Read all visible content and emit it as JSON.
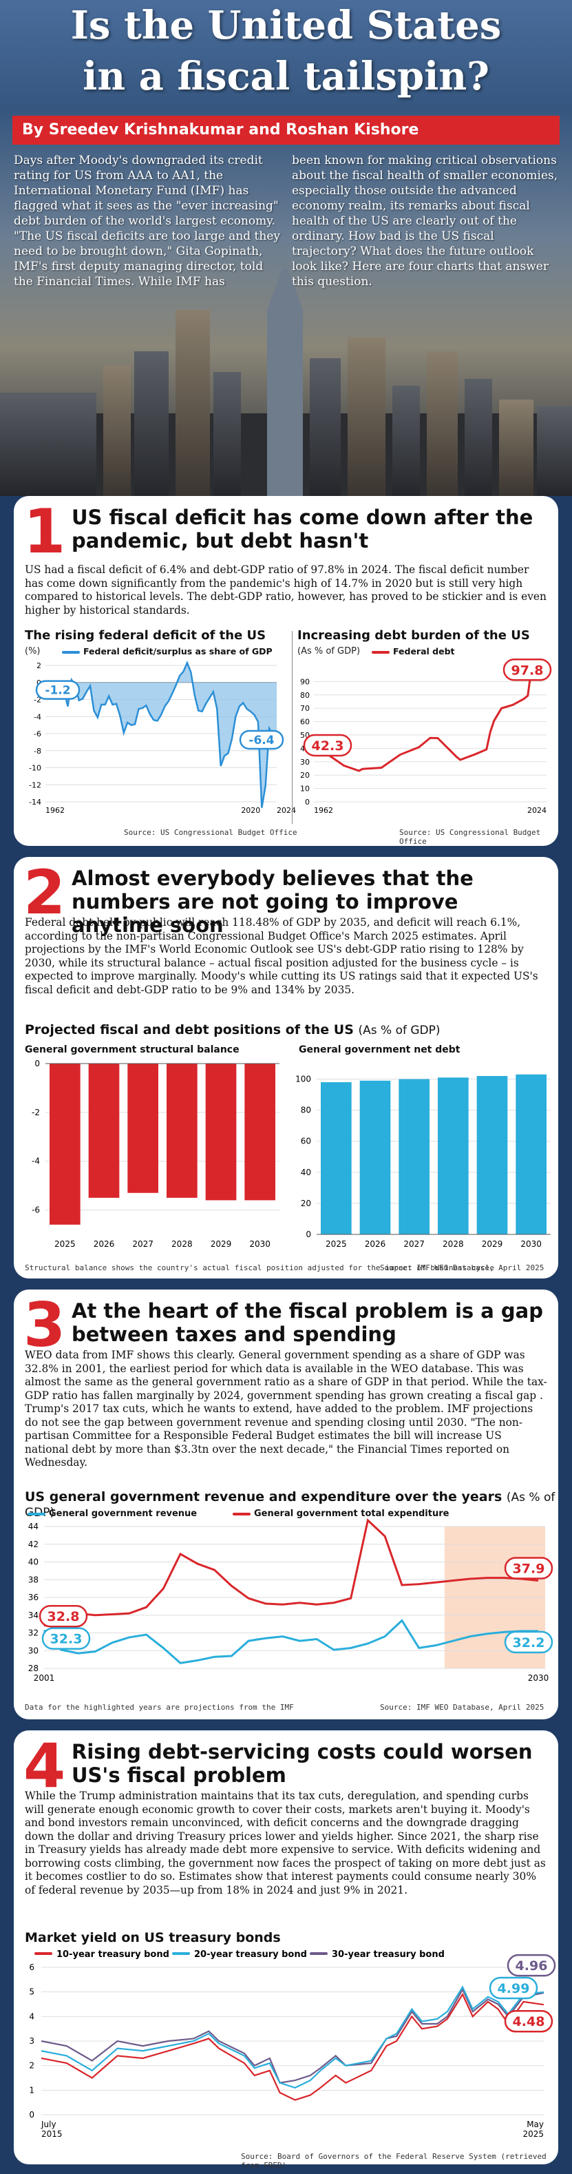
{
  "hero": {
    "title_line1": "Is the United States",
    "title_line2": "in a fiscal tailspin?",
    "byline": "By Sreedev Krishnakumar and Roshan Kishore",
    "intro_left": "Days after Moody's downgraded its credit rating for US from AAA to AA1, the International Monetary Fund (IMF) has flagged what it sees as the \"ever increasing\" debt burden of the world's largest economy. \"The US fiscal deficits are too large and they need to be brought down,\" Gita Gopinath, IMF's first deputy managing director, told the Financial Times. While IMF has",
    "intro_right": "been known for making critical observations about the fiscal health of smaller economies, especially those outside the advanced economy realm, its remarks about fiscal health of the US are clearly out of the ordinary. How bad is the US fiscal trajectory? What does the future outlook look like? Here are four charts that answer this question."
  },
  "colors": {
    "red": "#d9262b",
    "blue": "#2b8fd6",
    "teal": "#2aaedb",
    "purple": "#6d5a8a",
    "navy": "#1f3b64",
    "projection_shade": "#fbdcc8"
  },
  "s1": {
    "num": "1",
    "title": "US fiscal deficit has come down after the pandemic, but debt hasn't",
    "text": "US had a fiscal deficit of 6.4% and debt-GDP ratio of 97.8% in 2024. The fiscal deficit number has come down significantly from the pandemic's high of 14.7% in 2020 but is still very high compared to historical levels. The debt-GDP ratio, however, has proved to be stickier and is even higher by historical standards.",
    "chart1_title": "The rising federal deficit of the US",
    "chart1_unit": "(%)",
    "chart1_legend": "Federal deficit/surplus as share of GDP",
    "chart2_title": "Increasing debt burden of the US",
    "chart2_unit": "(As % of GDP)",
    "chart2_legend": "Federal debt",
    "source1": "Source: US Congressional Budget Office",
    "source2": "Source: US Congressional Budget Office"
  },
  "s2": {
    "num": "2",
    "title": "Almost everybody believes that the numbers are not going to improve anytime soon",
    "text": "Federal debt held by public will reach 118.48% of GDP by 2035, and deficit will reach 6.1%, according to the non-partisan Congressional Budget Office's March 2025 estimates. April projections by the IMF's World Economic Outlook see US's debt-GDP ratio rising to 128% by 2030, while its structural balance – actual fiscal position adjusted for the business cycle – is expected to improve marginally. Moody's while cutting its US ratings said that it expected US's fiscal deficit and debt-GDP ratio to be 9% and 134% by 2035.",
    "chart_title": "Projected fiscal and debt positions of the US",
    "chart_unit": "(As % of GDP)",
    "sub1": "General government structural balance",
    "sub2": "General government net debt",
    "note": "Structural balance shows the country's actual fiscal position adjusted for the impact of business cycle",
    "source": "Source: IMF WEO Database, April 2025"
  },
  "s3": {
    "num": "3",
    "title": "At the heart of the fiscal problem is a gap between taxes and spending",
    "text": "WEO data from IMF shows this clearly. General government spending as a share of GDP was 32.8% in 2001, the earliest period for which data is available in the WEO database. This was almost the same as the general government ratio as a share of GDP in that period. While the tax-GDP ratio has fallen marginally by 2024, government spending has grown creating a fiscal gap . Trump's 2017 tax cuts, which he wants to extend, have added to the problem. IMF projections do not see the gap between government revenue and spending closing until 2030. \"The non-partisan Committee for a Responsible Federal Budget estimates the bill will increase US national debt by more than $3.3tn over the next decade,\" the Financial Times reported on Wednesday.",
    "chart_title": "US general government revenue and expenditure over the years",
    "chart_unit": "(As % of GDP)",
    "legend_rev": "General government revenue",
    "legend_exp": "General government total expenditure",
    "note": "Data for the highlighted years are projections from the IMF",
    "source": "Source: IMF WEO Database, April 2025"
  },
  "s4": {
    "num": "4",
    "title": "Rising debt-servicing costs could worsen US's fiscal problem",
    "text": "While the Trump administration maintains that its tax cuts, deregulation, and spending curbs will generate enough economic growth to cover their costs, markets aren't buying it. Moody's and bond investors remain unconvinced, with deficit concerns and the downgrade dragging down the dollar and driving Treasury prices lower and yields higher. Since 2021, the sharp rise in Treasury yields has already made debt more expensive to service. With deficits widening and borrowing costs climbing, the government now faces the prospect of taking on more debt just as it becomes costlier to do so. Estimates show that interest payments could consume nearly 30% of federal revenue by 2035—up from 18% in 2024 and just 9% in 2021.",
    "chart_title": "Market yield on US treasury bonds",
    "source": "Source: Board of Governors of the Federal Reserve System (retrieved from FRED)"
  },
  "chart_data": [
    {
      "type": "area",
      "title": "The rising federal deficit of the US",
      "ylabel": "(%)",
      "x_ticks": [
        "1962",
        "2020",
        "2024"
      ],
      "y_ticks": [
        2,
        0,
        -2,
        -4,
        -6,
        -8,
        -10,
        -12,
        -14
      ],
      "ylim": [
        -14,
        2
      ],
      "xlim": [
        1962,
        2024
      ],
      "series": [
        {
          "name": "Federal deficit/surplus as share of GDP",
          "x": [
            1962,
            1963,
            1964,
            1965,
            1966,
            1967,
            1968,
            1969,
            1970,
            1971,
            1972,
            1973,
            1974,
            1975,
            1976,
            1977,
            1978,
            1979,
            1980,
            1981,
            1982,
            1983,
            1984,
            1985,
            1986,
            1987,
            1988,
            1989,
            1990,
            1991,
            1992,
            1993,
            1994,
            1995,
            1996,
            1997,
            1998,
            1999,
            2000,
            2001,
            2002,
            2003,
            2004,
            2005,
            2006,
            2007,
            2008,
            2009,
            2010,
            2011,
            2012,
            2013,
            2014,
            2015,
            2016,
            2017,
            2018,
            2019,
            2020,
            2021,
            2022,
            2023,
            2024
          ],
          "values": [
            -1.2,
            -0.8,
            -0.9,
            -0.2,
            -0.5,
            -1.0,
            -2.8,
            0.3,
            -0.3,
            -2.1,
            -1.9,
            -1.1,
            -0.4,
            -3.3,
            -4.1,
            -2.6,
            -2.6,
            -1.6,
            -2.6,
            -2.5,
            -3.9,
            -5.9,
            -4.7,
            -5.0,
            -4.9,
            -3.1,
            -3.0,
            -2.7,
            -3.7,
            -4.4,
            -4.5,
            -3.8,
            -2.8,
            -2.2,
            -1.3,
            -0.3,
            0.8,
            1.3,
            2.3,
            1.2,
            -1.5,
            -3.3,
            -3.4,
            -2.5,
            -1.8,
            -1.1,
            -3.1,
            -9.8,
            -8.6,
            -8.3,
            -6.6,
            -4.0,
            -2.8,
            -2.4,
            -3.1,
            -3.4,
            -3.8,
            -4.6,
            -14.7,
            -12.1,
            -5.4,
            -6.2,
            -6.4
          ]
        }
      ],
      "labels": [
        {
          "x": 1962,
          "text": "-1.2"
        },
        {
          "x": 2024,
          "text": "-6.4"
        }
      ]
    },
    {
      "type": "line",
      "title": "Increasing debt burden of the US",
      "ylabel": "(As % of GDP)",
      "x_ticks": [
        "1962",
        "2024"
      ],
      "y_ticks": [
        90,
        80,
        70,
        60,
        50,
        40,
        30,
        20,
        10,
        0
      ],
      "ylim": [
        0,
        100
      ],
      "xlim": [
        1962,
        2024
      ],
      "series": [
        {
          "name": "Federal debt",
          "x": [
            1962,
            1965,
            1970,
            1974,
            1975,
            1980,
            1985,
            1990,
            1993,
            1995,
            2000,
            2001,
            2005,
            2008,
            2009,
            2010,
            2012,
            2015,
            2018,
            2019,
            2020,
            2021,
            2022,
            2023,
            2024
          ],
          "values": [
            42.3,
            36.8,
            27.1,
            23.2,
            24.6,
            25.5,
            35.3,
            40.9,
            47.8,
            47.7,
            33.7,
            31.4,
            35.6,
            39.2,
            52.2,
            60.6,
            70.0,
            72.5,
            77.1,
            79.4,
            99.8,
            96.3,
            96.2,
            97.3,
            97.8
          ]
        }
      ],
      "labels": [
        {
          "x": 1962,
          "text": "42.3"
        },
        {
          "x": 2024,
          "text": "97.8"
        }
      ]
    },
    {
      "type": "bar",
      "title": "General government structural balance",
      "categories": [
        "2025",
        "2026",
        "2027",
        "2028",
        "2029",
        "2030"
      ],
      "values": [
        -6.6,
        -5.5,
        -5.3,
        -5.5,
        -5.6,
        -5.6
      ],
      "y_ticks": [
        0,
        -2,
        -4,
        -6
      ],
      "ylim": [
        -7,
        0
      ]
    },
    {
      "type": "bar",
      "title": "General government net debt",
      "categories": [
        "2025",
        "2026",
        "2027",
        "2028",
        "2029",
        "2030"
      ],
      "values": [
        98,
        99,
        100,
        101,
        102,
        103
      ],
      "y_ticks": [
        0,
        20,
        40,
        60,
        80,
        100
      ],
      "ylim": [
        0,
        110
      ]
    },
    {
      "type": "line",
      "title": "US general government revenue and expenditure over the years",
      "ylabel": "(As % of GDP)",
      "x_ticks": [
        "2001",
        "2030"
      ],
      "y_ticks": [
        44,
        42,
        40,
        38,
        36,
        34,
        32,
        30,
        28
      ],
      "ylim": [
        28,
        44
      ],
      "xlim": [
        2001,
        2030
      ],
      "projection_start": 2025,
      "series": [
        {
          "name": "General government revenue",
          "x": [
            2001,
            2002,
            2003,
            2004,
            2005,
            2006,
            2007,
            2008,
            2009,
            2010,
            2011,
            2012,
            2013,
            2014,
            2015,
            2016,
            2017,
            2018,
            2019,
            2020,
            2021,
            2022,
            2023,
            2024,
            2025,
            2026,
            2027,
            2028,
            2029,
            2030
          ],
          "values": [
            32.3,
            30.1,
            29.7,
            29.9,
            30.9,
            31.5,
            31.8,
            30.3,
            28.6,
            28.9,
            29.3,
            29.4,
            31.1,
            31.4,
            31.6,
            31.1,
            31.3,
            30.1,
            30.3,
            30.8,
            31.6,
            33.4,
            30.3,
            30.6,
            31.1,
            31.6,
            31.9,
            32.1,
            32.2,
            32.2
          ]
        },
        {
          "name": "General government total expenditure",
          "x": [
            2001,
            2002,
            2003,
            2004,
            2005,
            2006,
            2007,
            2008,
            2009,
            2010,
            2011,
            2012,
            2013,
            2014,
            2015,
            2016,
            2017,
            2018,
            2019,
            2020,
            2021,
            2022,
            2023,
            2024,
            2025,
            2026,
            2027,
            2028,
            2029,
            2030
          ],
          "values": [
            32.8,
            33.6,
            34.2,
            34.0,
            34.1,
            34.2,
            34.9,
            37.0,
            40.9,
            39.8,
            39.1,
            37.3,
            35.9,
            35.3,
            35.2,
            35.4,
            35.2,
            35.4,
            35.9,
            44.7,
            42.9,
            37.4,
            37.5,
            37.7,
            37.9,
            38.1,
            38.2,
            38.2,
            38.1,
            37.9
          ]
        }
      ],
      "labels": [
        {
          "x": 2001,
          "text": "32.8"
        },
        {
          "x": 2001,
          "text": "32.3"
        },
        {
          "x": 2030,
          "text": "37.9"
        },
        {
          "x": 2030,
          "text": "32.2"
        }
      ]
    },
    {
      "type": "line",
      "title": "Market yield on US treasury bonds",
      "x_ticks": [
        "July 2015",
        "May 2025"
      ],
      "y_ticks": [
        6,
        5,
        4,
        3,
        2,
        1,
        0
      ],
      "ylim": [
        0,
        6
      ],
      "xlim": [
        2015.5,
        2025.4
      ],
      "series": [
        {
          "name": "10-year treasury bond",
          "x": [
            2015.5,
            2016.0,
            2016.5,
            2017.0,
            2017.5,
            2018.0,
            2018.5,
            2018.8,
            2019.0,
            2019.5,
            2019.7,
            2020.0,
            2020.2,
            2020.5,
            2020.8,
            2021.0,
            2021.3,
            2021.5,
            2022.0,
            2022.3,
            2022.5,
            2022.8,
            2023.0,
            2023.3,
            2023.5,
            2023.8,
            2024.0,
            2024.3,
            2024.5,
            2024.7,
            2025.0,
            2025.4
          ],
          "values": [
            2.3,
            2.1,
            1.5,
            2.4,
            2.3,
            2.6,
            2.9,
            3.1,
            2.7,
            2.1,
            1.6,
            1.8,
            0.9,
            0.6,
            0.8,
            1.1,
            1.6,
            1.3,
            1.8,
            2.8,
            3.0,
            4.0,
            3.5,
            3.6,
            3.9,
            4.9,
            4.0,
            4.6,
            4.3,
            3.7,
            4.6,
            4.48
          ]
        },
        {
          "name": "20-year treasury bond",
          "x": [
            2015.5,
            2016.0,
            2016.5,
            2017.0,
            2017.5,
            2018.0,
            2018.5,
            2018.8,
            2019.0,
            2019.5,
            2019.7,
            2020.0,
            2020.2,
            2020.5,
            2020.8,
            2021.0,
            2021.3,
            2021.5,
            2022.0,
            2022.3,
            2022.5,
            2022.8,
            2023.0,
            2023.3,
            2023.5,
            2023.8,
            2024.0,
            2024.3,
            2024.5,
            2024.7,
            2025.0,
            2025.4
          ],
          "values": [
            2.6,
            2.4,
            1.8,
            2.7,
            2.6,
            2.8,
            3.0,
            3.3,
            2.9,
            2.4,
            1.9,
            2.1,
            1.3,
            1.1,
            1.4,
            1.8,
            2.3,
            2.0,
            2.2,
            3.1,
            3.3,
            4.3,
            3.8,
            3.9,
            4.2,
            5.2,
            4.3,
            4.8,
            4.6,
            4.1,
            4.9,
            4.99
          ]
        },
        {
          "name": "30-year treasury bond",
          "x": [
            2015.5,
            2016.0,
            2016.5,
            2017.0,
            2017.5,
            2018.0,
            2018.5,
            2018.8,
            2019.0,
            2019.5,
            2019.7,
            2020.0,
            2020.2,
            2020.5,
            2020.8,
            2021.0,
            2021.3,
            2021.5,
            2022.0,
            2022.3,
            2022.5,
            2022.8,
            2023.0,
            2023.3,
            2023.5,
            2023.8,
            2024.0,
            2024.3,
            2024.5,
            2024.7,
            2025.0,
            2025.4
          ],
          "values": [
            3.0,
            2.8,
            2.2,
            3.0,
            2.8,
            3.0,
            3.1,
            3.4,
            3.0,
            2.5,
            2.0,
            2.3,
            1.3,
            1.4,
            1.6,
            1.9,
            2.4,
            2.0,
            2.1,
            3.1,
            3.2,
            4.2,
            3.7,
            3.7,
            4.0,
            5.1,
            4.2,
            4.7,
            4.5,
            4.0,
            4.8,
            4.96
          ]
        }
      ],
      "labels": [
        {
          "text": "4.96"
        },
        {
          "text": "4.99"
        },
        {
          "text": "4.48"
        }
      ]
    }
  ]
}
